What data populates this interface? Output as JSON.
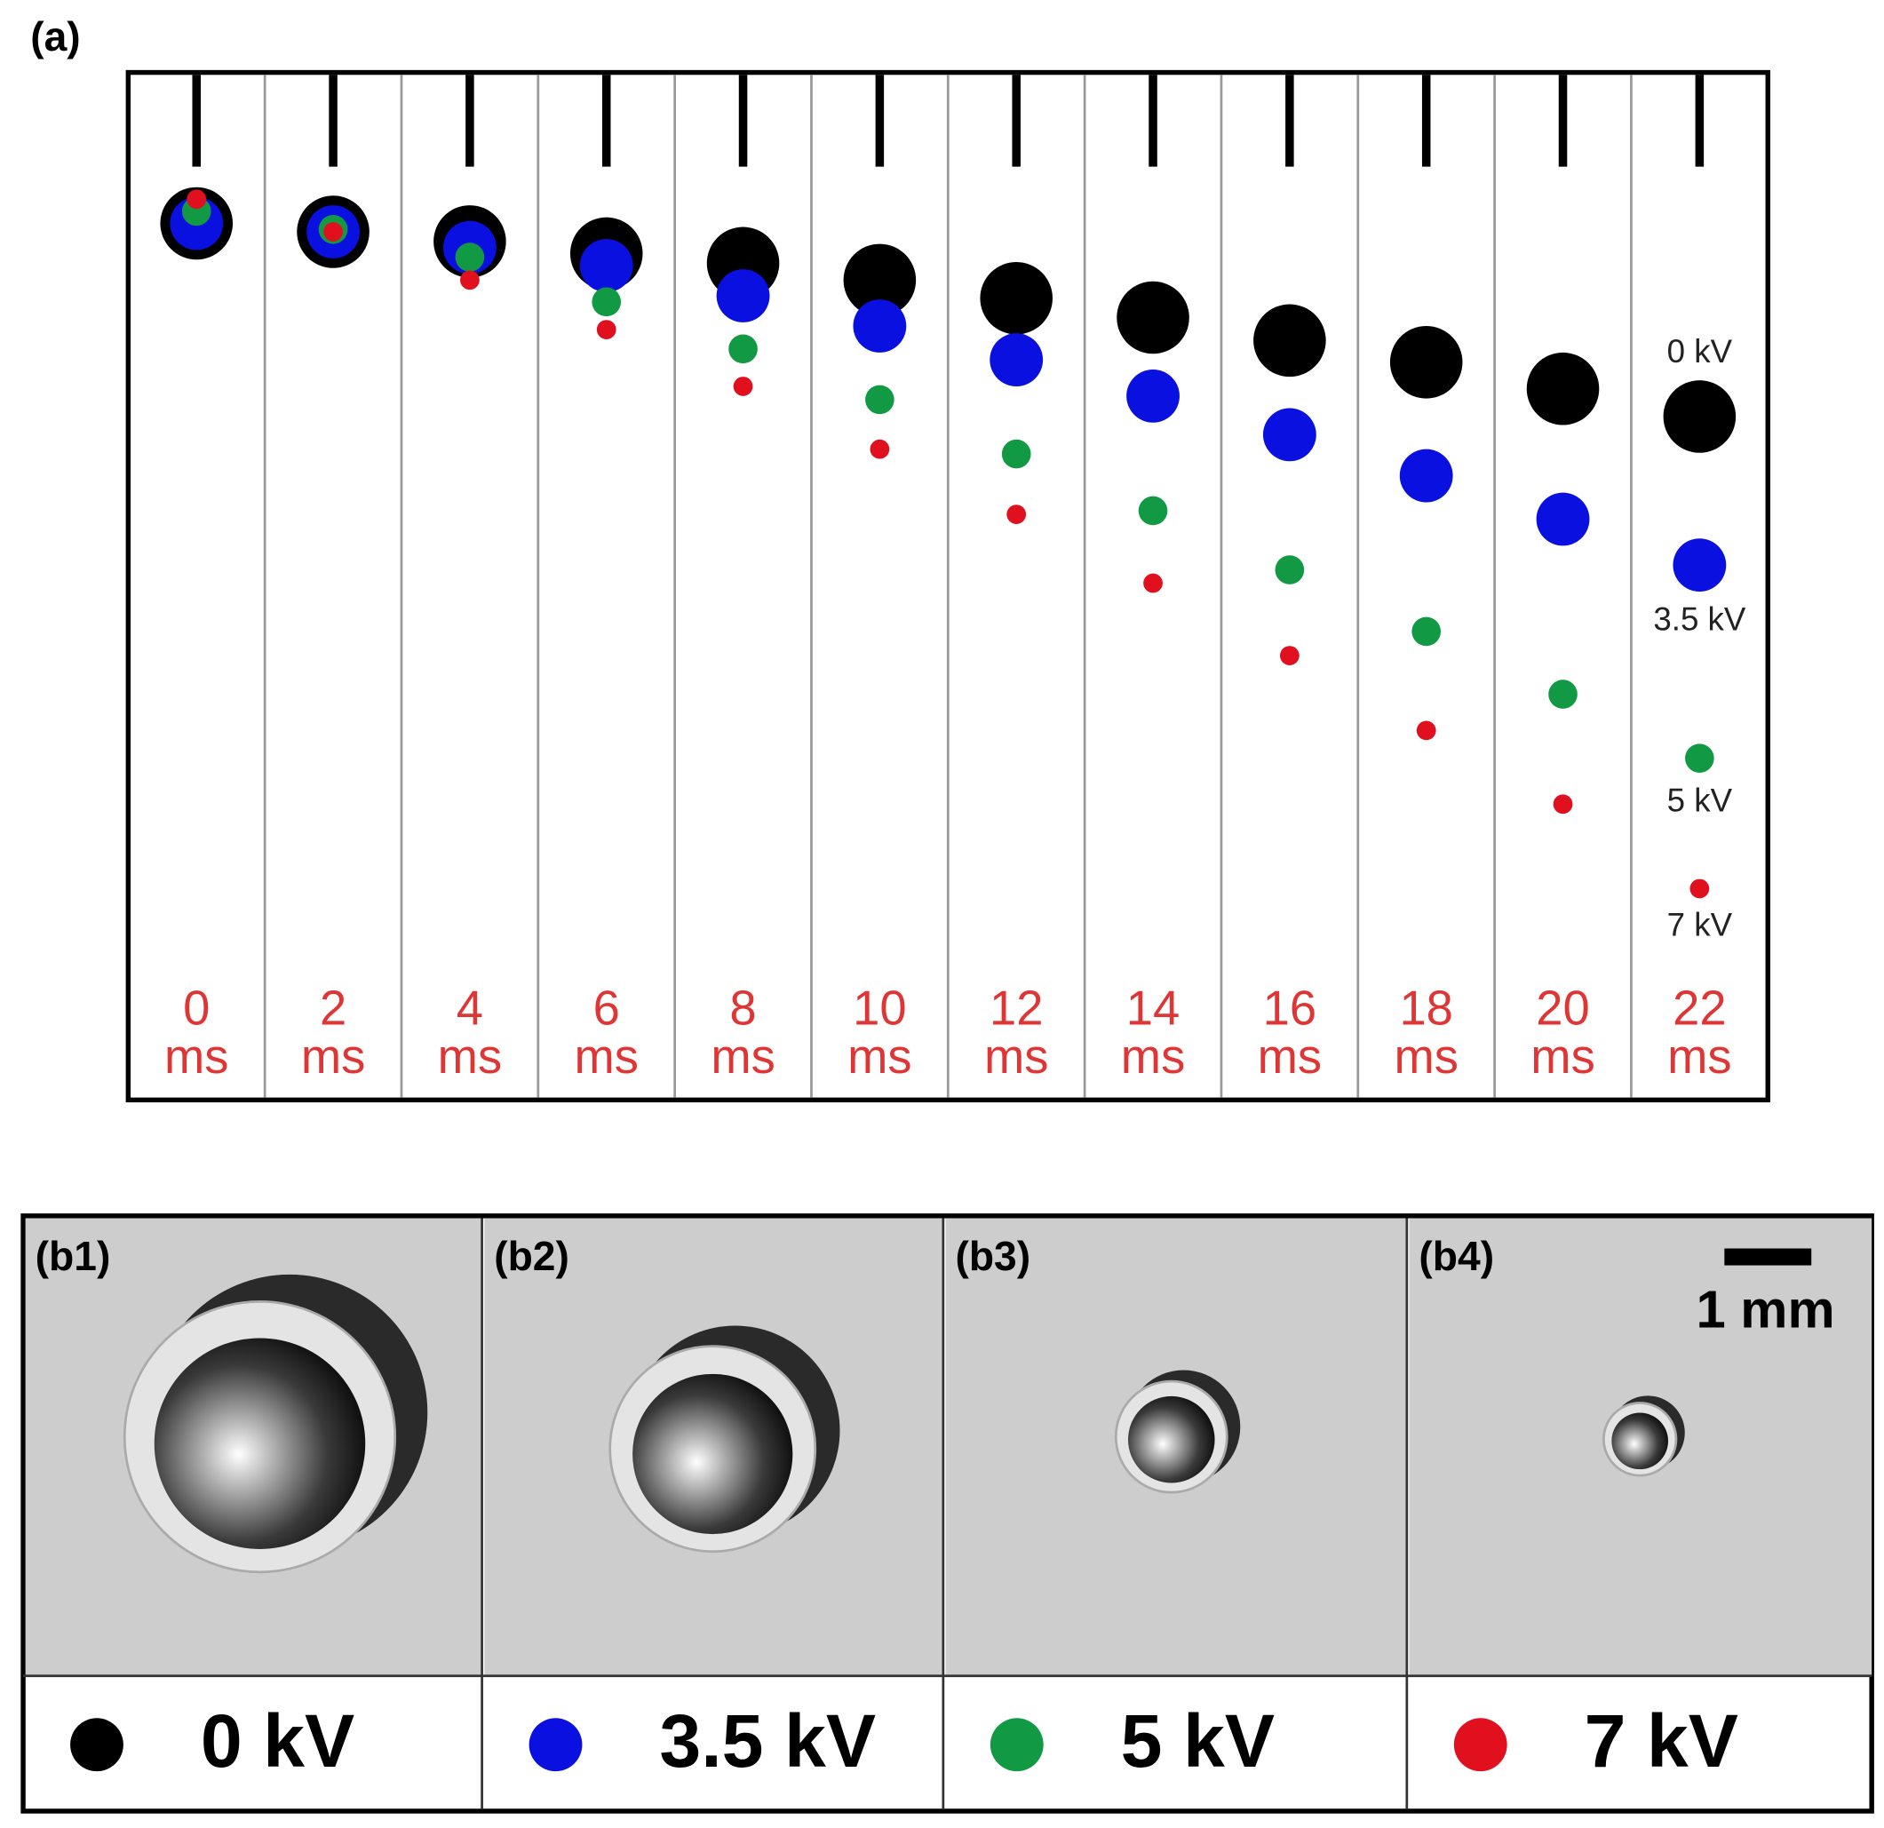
{
  "panel_a": {
    "label": "(a)",
    "frames": [
      {
        "time": "0",
        "unit": "ms"
      },
      {
        "time": "2",
        "unit": "ms"
      },
      {
        "time": "4",
        "unit": "ms"
      },
      {
        "time": "6",
        "unit": "ms"
      },
      {
        "time": "8",
        "unit": "ms"
      },
      {
        "time": "10",
        "unit": "ms"
      },
      {
        "time": "12",
        "unit": "ms"
      },
      {
        "time": "14",
        "unit": "ms"
      },
      {
        "time": "16",
        "unit": "ms"
      },
      {
        "time": "18",
        "unit": "ms"
      },
      {
        "time": "20",
        "unit": "ms"
      },
      {
        "time": "22",
        "unit": "ms"
      }
    ],
    "voltage_labels": [
      "0 kV",
      "3.5 kV",
      "5 kV",
      "7 kV"
    ]
  },
  "panel_b": {
    "photos": [
      {
        "label": "(b1)"
      },
      {
        "label": "(b2)"
      },
      {
        "label": "(b3)"
      },
      {
        "label": "(b4)"
      }
    ],
    "scale_bar": "1 mm",
    "legend": [
      {
        "label": "0 kV",
        "color": "#000000"
      },
      {
        "label": "3.5 kV",
        "color": "#0a10e0"
      },
      {
        "label": "5 kV",
        "color": "#119944"
      },
      {
        "label": "7 kV",
        "color": "#e0101e"
      }
    ]
  }
}
